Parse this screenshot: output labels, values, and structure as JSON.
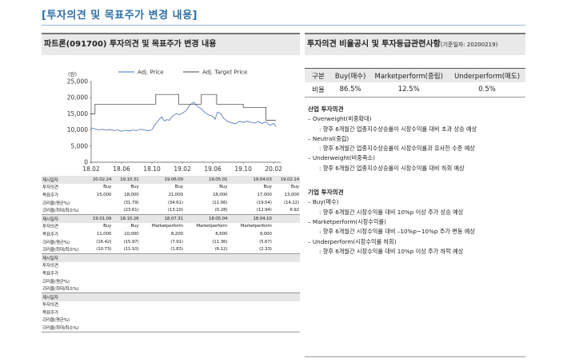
{
  "page_title": "[투자의견 및 목표주가 변경 내용]",
  "left_panel": {
    "title": "파트론(091700) 투자의견 및 목표주가 변경 내용"
  },
  "chart_data": {
    "type": "line",
    "unit_label": "(원)",
    "legend": [
      "Adj. Price",
      "Adj. Target Price"
    ],
    "legend_placement": "top",
    "ylim": [
      0,
      25000
    ],
    "yticks": [
      "25,000",
      "20,000",
      "15,000",
      "10,000",
      "5,000",
      "0"
    ],
    "xticks": [
      "18.02",
      "18.06",
      "18.10",
      "19.02",
      "19.06",
      "19.10",
      "20.02"
    ],
    "series": [
      {
        "name": "Adj. Price",
        "x": [
          0,
          0.5,
          1,
          1.5,
          2,
          2.5,
          3,
          3.5,
          4,
          4.5,
          5,
          5.5,
          6,
          6.5,
          7,
          7.5,
          8,
          8.5,
          8.8,
          9,
          9.3,
          9.6,
          10,
          10.3,
          10.6,
          11,
          11.3,
          11.6,
          12,
          12.5,
          13,
          13.5,
          14,
          14.5,
          15,
          15.5,
          16,
          16.3,
          16.6,
          17,
          17.5,
          18,
          18.5,
          19,
          19.5,
          20,
          20.5,
          21,
          21.5,
          22,
          22.5,
          23,
          23.5,
          24,
          24.3
        ],
        "y": [
          10600,
          10300,
          10000,
          10200,
          9900,
          10100,
          9800,
          10000,
          9600,
          9900,
          9700,
          10000,
          9800,
          10200,
          10000,
          9700,
          10100,
          12000,
          12800,
          13500,
          14000,
          12800,
          13200,
          13000,
          14000,
          14800,
          15000,
          14700,
          15200,
          16000,
          17800,
          18600,
          17200,
          16500,
          15300,
          14600,
          14200,
          13300,
          15500,
          15100,
          13400,
          12600,
          12200,
          11900,
          12700,
          12300,
          12700,
          12400,
          12100,
          12600,
          12000,
          12500,
          11400,
          12000,
          11100
        ]
      },
      {
        "name": "Adj. Target Price",
        "x": [
          0,
          0.5,
          0.5,
          8.5,
          8.5,
          11.5,
          11.5,
          14.5,
          14.5,
          16.5,
          16.5,
          20,
          20,
          23,
          23,
          24.3
        ],
        "y": [
          15000,
          15000,
          18000,
          18000,
          21000,
          21000,
          18000,
          18000,
          21000,
          21000,
          18000,
          18000,
          17000,
          17000,
          13000,
          13000
        ]
      }
    ]
  },
  "history_table": {
    "groups": [
      {
        "date": [
          "제시일자",
          "20.02.24",
          "19.10.31",
          "19.06.09",
          "19.05.01",
          "19.04.03",
          "19.02.14"
        ],
        "rows": [
          [
            "투자의견",
            "Buy",
            "Buy",
            "Buy",
            "Buy",
            "Buy",
            "Buy"
          ],
          [
            "목표주가",
            "15,000",
            "18,000",
            "21,000",
            "18,000",
            "17,000",
            "13,000"
          ],
          [
            "괴리율(평균%)",
            "",
            "(31.79)",
            "(34.61)",
            "(11.06)",
            "(19.54)",
            "(14.22)"
          ],
          [
            "괴리율(최대/최소%)",
            "",
            "(23.61)",
            "(13.10)",
            "(0.28)",
            "(12.94)",
            "6.92"
          ]
        ]
      },
      {
        "date": [
          "제시일자",
          "19.01.09",
          "18.10.26",
          "18.07.31",
          "18.05.04",
          "18.04.10",
          ""
        ],
        "rows": [
          [
            "투자의견",
            "Buy",
            "Buy",
            "Marketperform",
            "Marketperform",
            "Marketperform",
            ""
          ],
          [
            "목표주가",
            "11,000",
            "10,000",
            "8,200",
            "8,600",
            "9,000",
            ""
          ],
          [
            "괴리율(평균%)",
            "(16.42)",
            "(15.97)",
            "(7.91)",
            "(11.36)",
            "(5.67)",
            ""
          ],
          [
            "괴리율(최대/최소%)",
            "(10.73)",
            "(11.10)",
            "(1.83)",
            "(6.12)",
            "(2.33)",
            ""
          ]
        ]
      },
      {
        "date": [
          "제시일자",
          "",
          "",
          "",
          "",
          "",
          ""
        ],
        "rows": [
          [
            "투자의견",
            "",
            "",
            "",
            "",
            "",
            ""
          ],
          [
            "목표주가",
            "",
            "",
            "",
            "",
            "",
            ""
          ],
          [
            "괴리율(평균%)",
            "",
            "",
            "",
            "",
            "",
            ""
          ],
          [
            "괴리율(최대/최소%)",
            "",
            "",
            "",
            "",
            "",
            ""
          ]
        ]
      },
      {
        "date": [
          "제시일자",
          "",
          "",
          "",
          "",
          "",
          ""
        ],
        "rows": [
          [
            "투자의견",
            "",
            "",
            "",
            "",
            "",
            ""
          ],
          [
            "목표주가",
            "",
            "",
            "",
            "",
            "",
            ""
          ],
          [
            "괴리율(평균%)",
            "",
            "",
            "",
            "",
            "",
            ""
          ],
          [
            "괴리율(최대/최소%)",
            "",
            "",
            "",
            "",
            "",
            ""
          ]
        ]
      }
    ]
  },
  "right_panel": {
    "title": "투자의견 비율공시 및 투자등급관련사항",
    "title_note": "(기준일자: 20200219)",
    "ratio_headers": [
      "구분",
      "Buy(매수)",
      "Marketperform(중립)",
      "Underperform(매도)"
    ],
    "ratio_row": [
      "비율",
      "86.5%",
      "12.5%",
      "0.5%"
    ],
    "industry": {
      "heading": "산업 투자의견",
      "items": [
        {
          "label": "– Overweight(비중확대)",
          "desc": ": 향후 6개월간 업종지수상승률이 시장수익률 대비 초과 상승 예상"
        },
        {
          "label": "– Neutral(중립)",
          "desc": ": 향후 6개월간 업종지수상승률이 시장수익률과 유사한 수준 예상"
        },
        {
          "label": "– Underweight(비중축소)",
          "desc": ": 향후 6개월간 업종지수상승률이 시장수익률 대비 하회 예상"
        }
      ]
    },
    "company": {
      "heading": "기업 투자의견",
      "items": [
        {
          "label": "– Buy(매수)",
          "desc": ": 향후 6개월간 시장수익률 대비 10%p 이상 주가 상승 예상"
        },
        {
          "label": "– Marketperform(시장수익률)",
          "desc": ": 향후 6개월간 시장수익률 대비 –10%p~10%p 주가 변동 예상"
        },
        {
          "label": "– Underperform(시장수익률 하회)",
          "desc": ": 향후 6개월간 시장수익률 대비 10%p 이상 주가 하락 예상"
        }
      ]
    }
  }
}
